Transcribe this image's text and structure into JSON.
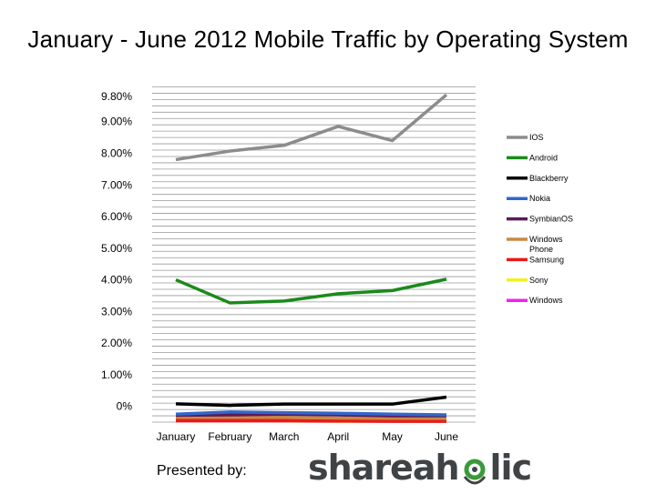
{
  "chart_data": {
    "type": "line",
    "title": "January - June 2012 Mobile Traffic by Operating System",
    "categories": [
      "January",
      "February",
      "March",
      "April",
      "May",
      "June"
    ],
    "y_tick_labels": [
      "9.80%",
      "9.00%",
      "8.00%",
      "7.00%",
      "6.00%",
      "5.00%",
      "4.00%",
      "3.00%",
      "2.00%",
      "1.00%",
      "0%"
    ],
    "y_tick_values": [
      9.8,
      9.0,
      8.0,
      7.0,
      6.0,
      5.0,
      4.0,
      3.0,
      2.0,
      1.0,
      0.0
    ],
    "ylim": [
      -0.5,
      10.2
    ],
    "grid": true,
    "legend_position": "right",
    "series": [
      {
        "name": "IOS",
        "color": "#8c8c8c",
        "values": [
          7.8,
          8.07,
          8.25,
          8.85,
          8.4,
          9.85
        ]
      },
      {
        "name": "Android",
        "color": "#1a8a1a",
        "values": [
          4.0,
          3.27,
          3.33,
          3.56,
          3.66,
          4.02
        ]
      },
      {
        "name": "Blackberry",
        "color": "#000000",
        "values": [
          0.08,
          0.03,
          0.07,
          0.07,
          0.07,
          0.29
        ]
      },
      {
        "name": "Nokia",
        "color": "#3366cc",
        "values": [
          -0.25,
          -0.18,
          -0.2,
          -0.22,
          -0.25,
          -0.27
        ]
      },
      {
        "name": "SymbianOS",
        "color": "#5a1a5a",
        "values": [
          -0.28,
          -0.27,
          -0.25,
          -0.27,
          -0.3,
          -0.3
        ]
      },
      {
        "name": "Windows Phone",
        "color": "#cc8844",
        "values": [
          -0.35,
          -0.35,
          -0.35,
          -0.37,
          -0.38,
          -0.38
        ]
      },
      {
        "name": "Samsung",
        "color": "#e81a1a",
        "values": [
          -0.45,
          -0.45,
          -0.45,
          -0.46,
          -0.47,
          -0.47
        ]
      },
      {
        "name": "Sony",
        "color": "#f2f21a",
        "values": [
          -0.46,
          -0.46,
          -0.46,
          -0.47,
          -0.47,
          -0.47
        ]
      },
      {
        "name": "Windows",
        "color": "#ee22ee",
        "values": [
          -0.47,
          -0.47,
          -0.47,
          -0.48,
          -0.48,
          -0.48
        ]
      }
    ]
  },
  "footer": {
    "presented_label": "Presented by:",
    "logo_text_left": "shareah",
    "logo_text_right": "lic",
    "logo_ring_color": "#3a9a3a"
  }
}
